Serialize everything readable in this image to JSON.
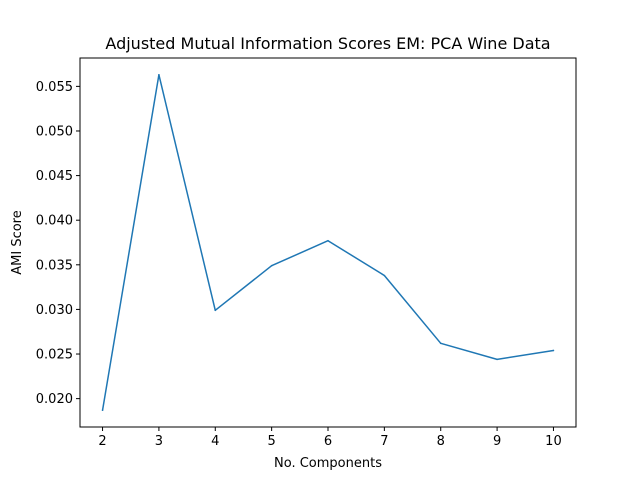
{
  "chart_data": {
    "type": "line",
    "title": "Adjusted Mutual Information Scores EM: PCA Wine Data",
    "xlabel": "No. Components",
    "ylabel": "AMI Score",
    "x": [
      2,
      3,
      4,
      5,
      6,
      7,
      8,
      9,
      10
    ],
    "series": [
      {
        "values": [
          0.0187,
          0.0563,
          0.0299,
          0.0349,
          0.0377,
          0.0338,
          0.0262,
          0.0244,
          0.0254
        ],
        "color": "#1f77b4"
      }
    ],
    "xlim": [
      1.6,
      10.4
    ],
    "ylim": [
      0.01682,
      0.05818
    ],
    "xticks": [
      2,
      3,
      4,
      5,
      6,
      7,
      8,
      9,
      10
    ],
    "yticks": [
      "0.020",
      "0.025",
      "0.030",
      "0.035",
      "0.040",
      "0.045",
      "0.050",
      "0.055"
    ],
    "grid": false
  }
}
